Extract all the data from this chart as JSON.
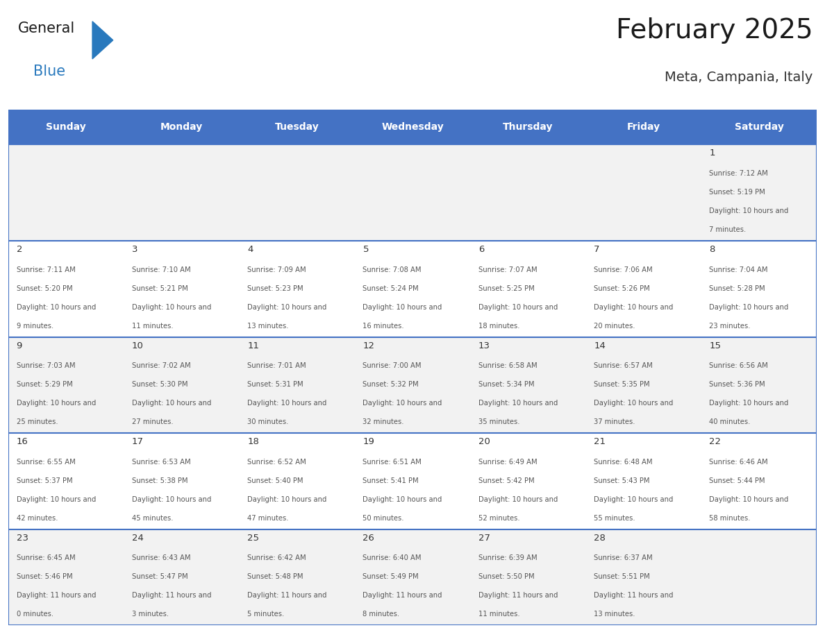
{
  "title": "February 2025",
  "subtitle": "Meta, Campania, Italy",
  "days_of_week": [
    "Sunday",
    "Monday",
    "Tuesday",
    "Wednesday",
    "Thursday",
    "Friday",
    "Saturday"
  ],
  "header_bg": "#4472C4",
  "header_text": "#FFFFFF",
  "cell_bg_odd": "#F2F2F2",
  "cell_bg_even": "#FFFFFF",
  "border_color": "#4472C4",
  "text_color": "#555555",
  "day_number_color": "#333333",
  "title_color": "#1a1a1a",
  "subtitle_color": "#333333",
  "logo_general_color": "#1a1a1a",
  "logo_blue_color": "#2979BD",
  "logo_triangle_color": "#2979BD",
  "calendar_data": [
    [
      null,
      null,
      null,
      null,
      null,
      null,
      {
        "day": 1,
        "sunrise": "7:12 AM",
        "sunset": "5:19 PM",
        "daylight": "10 hours and 7 minutes"
      }
    ],
    [
      {
        "day": 2,
        "sunrise": "7:11 AM",
        "sunset": "5:20 PM",
        "daylight": "10 hours and 9 minutes"
      },
      {
        "day": 3,
        "sunrise": "7:10 AM",
        "sunset": "5:21 PM",
        "daylight": "10 hours and 11 minutes"
      },
      {
        "day": 4,
        "sunrise": "7:09 AM",
        "sunset": "5:23 PM",
        "daylight": "10 hours and 13 minutes"
      },
      {
        "day": 5,
        "sunrise": "7:08 AM",
        "sunset": "5:24 PM",
        "daylight": "10 hours and 16 minutes"
      },
      {
        "day": 6,
        "sunrise": "7:07 AM",
        "sunset": "5:25 PM",
        "daylight": "10 hours and 18 minutes"
      },
      {
        "day": 7,
        "sunrise": "7:06 AM",
        "sunset": "5:26 PM",
        "daylight": "10 hours and 20 minutes"
      },
      {
        "day": 8,
        "sunrise": "7:04 AM",
        "sunset": "5:28 PM",
        "daylight": "10 hours and 23 minutes"
      }
    ],
    [
      {
        "day": 9,
        "sunrise": "7:03 AM",
        "sunset": "5:29 PM",
        "daylight": "10 hours and 25 minutes"
      },
      {
        "day": 10,
        "sunrise": "7:02 AM",
        "sunset": "5:30 PM",
        "daylight": "10 hours and 27 minutes"
      },
      {
        "day": 11,
        "sunrise": "7:01 AM",
        "sunset": "5:31 PM",
        "daylight": "10 hours and 30 minutes"
      },
      {
        "day": 12,
        "sunrise": "7:00 AM",
        "sunset": "5:32 PM",
        "daylight": "10 hours and 32 minutes"
      },
      {
        "day": 13,
        "sunrise": "6:58 AM",
        "sunset": "5:34 PM",
        "daylight": "10 hours and 35 minutes"
      },
      {
        "day": 14,
        "sunrise": "6:57 AM",
        "sunset": "5:35 PM",
        "daylight": "10 hours and 37 minutes"
      },
      {
        "day": 15,
        "sunrise": "6:56 AM",
        "sunset": "5:36 PM",
        "daylight": "10 hours and 40 minutes"
      }
    ],
    [
      {
        "day": 16,
        "sunrise": "6:55 AM",
        "sunset": "5:37 PM",
        "daylight": "10 hours and 42 minutes"
      },
      {
        "day": 17,
        "sunrise": "6:53 AM",
        "sunset": "5:38 PM",
        "daylight": "10 hours and 45 minutes"
      },
      {
        "day": 18,
        "sunrise": "6:52 AM",
        "sunset": "5:40 PM",
        "daylight": "10 hours and 47 minutes"
      },
      {
        "day": 19,
        "sunrise": "6:51 AM",
        "sunset": "5:41 PM",
        "daylight": "10 hours and 50 minutes"
      },
      {
        "day": 20,
        "sunrise": "6:49 AM",
        "sunset": "5:42 PM",
        "daylight": "10 hours and 52 minutes"
      },
      {
        "day": 21,
        "sunrise": "6:48 AM",
        "sunset": "5:43 PM",
        "daylight": "10 hours and 55 minutes"
      },
      {
        "day": 22,
        "sunrise": "6:46 AM",
        "sunset": "5:44 PM",
        "daylight": "10 hours and 58 minutes"
      }
    ],
    [
      {
        "day": 23,
        "sunrise": "6:45 AM",
        "sunset": "5:46 PM",
        "daylight": "11 hours and 0 minutes"
      },
      {
        "day": 24,
        "sunrise": "6:43 AM",
        "sunset": "5:47 PM",
        "daylight": "11 hours and 3 minutes"
      },
      {
        "day": 25,
        "sunrise": "6:42 AM",
        "sunset": "5:48 PM",
        "daylight": "11 hours and 5 minutes"
      },
      {
        "day": 26,
        "sunrise": "6:40 AM",
        "sunset": "5:49 PM",
        "daylight": "11 hours and 8 minutes"
      },
      {
        "day": 27,
        "sunrise": "6:39 AM",
        "sunset": "5:50 PM",
        "daylight": "11 hours and 11 minutes"
      },
      {
        "day": 28,
        "sunrise": "6:37 AM",
        "sunset": "5:51 PM",
        "daylight": "11 hours and 13 minutes"
      },
      null
    ]
  ]
}
